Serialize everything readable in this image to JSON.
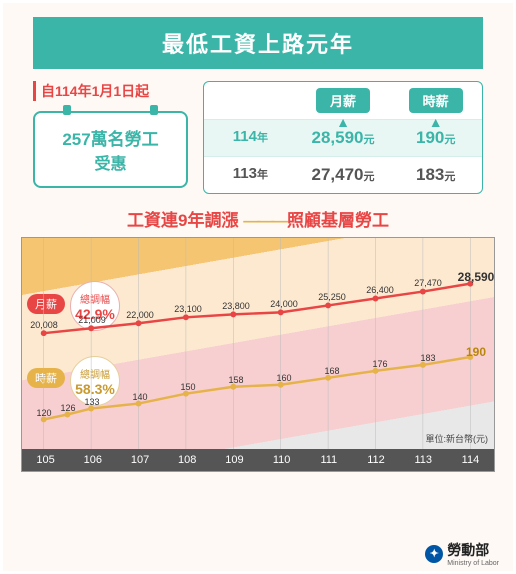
{
  "header": {
    "title": "最低工資上路元年"
  },
  "effective": {
    "text": "自114年1月1日起"
  },
  "workers": {
    "line1": "257萬名勞工",
    "line2": "受惠"
  },
  "table": {
    "headers": [
      "",
      "月薪",
      "時薪"
    ],
    "rows": [
      {
        "year": "114",
        "year_unit": "年",
        "monthly": "28,590",
        "hourly": "190",
        "unit": "元",
        "highlight": true,
        "arrows": true
      },
      {
        "year": "113",
        "year_unit": "年",
        "monthly": "27,470",
        "hourly": "183",
        "unit": "元",
        "highlight": false
      }
    ]
  },
  "chart": {
    "title_left": "工資連9年調漲",
    "title_right": "照顧基層勞工",
    "monthly_pill": "月薪",
    "hourly_pill": "時薪",
    "badge_monthly": {
      "label": "總調幅",
      "pct": "42.9%"
    },
    "badge_hourly": {
      "label": "總調幅",
      "pct": "58.3%"
    },
    "x_labels": [
      "105",
      "106",
      "107",
      "108",
      "109",
      "110",
      "111",
      "112",
      "113",
      "114"
    ],
    "unit_text": "單位:新台幣(元)",
    "monthly": {
      "values": [
        20008,
        21009,
        22000,
        23100,
        23800,
        24000,
        25250,
        26400,
        27470,
        28590
      ],
      "color": "#e84545",
      "points": [
        [
          22,
          96
        ],
        [
          70,
          91
        ],
        [
          118,
          86
        ],
        [
          166,
          80
        ],
        [
          214,
          77
        ],
        [
          262,
          75
        ],
        [
          310,
          68
        ],
        [
          358,
          61
        ],
        [
          406,
          54
        ],
        [
          454,
          46
        ]
      ]
    },
    "hourly": {
      "values": [
        120,
        126,
        133,
        140,
        150,
        158,
        160,
        168,
        176,
        183,
        190
      ],
      "color": "#e5b34a",
      "points": [
        [
          22,
          183
        ],
        [
          46,
          178
        ],
        [
          70,
          172
        ],
        [
          118,
          167
        ],
        [
          166,
          157
        ],
        [
          214,
          150
        ],
        [
          262,
          148
        ],
        [
          310,
          141
        ],
        [
          358,
          134
        ],
        [
          406,
          128
        ],
        [
          454,
          120
        ]
      ]
    }
  },
  "footer": {
    "org": "勞動部",
    "sub": "Ministry of Labor"
  }
}
